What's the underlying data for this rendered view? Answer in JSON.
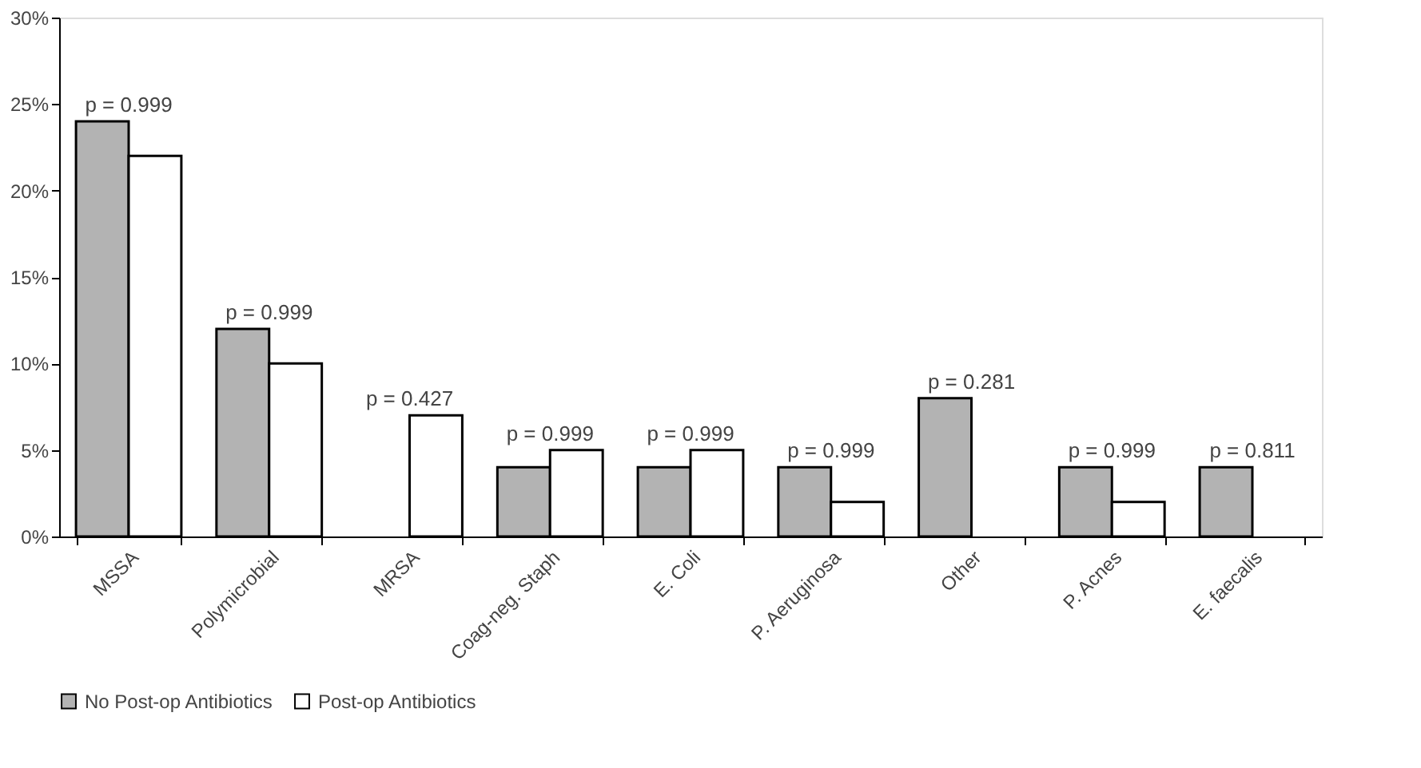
{
  "chart_data": {
    "type": "bar",
    "categories": [
      "MSSA",
      "Polymicrobial",
      "MRSA",
      "Coag-neg. Staph",
      "E. Coli",
      "P. Aeruginosa",
      "Other",
      "P. Acnes",
      "E. faecalis"
    ],
    "series": [
      {
        "name": "No Post-op Antibiotics",
        "color": "#b3b3b3",
        "values": [
          24,
          12,
          0,
          4,
          4,
          4,
          8,
          4,
          4
        ]
      },
      {
        "name": "Post-op Antibiotics",
        "color": "#ffffff",
        "values": [
          22,
          10,
          7,
          5,
          5,
          2,
          0,
          2,
          0
        ]
      }
    ],
    "ylim": [
      0,
      30
    ],
    "yticks": [
      {
        "value": 0,
        "label": "0%"
      },
      {
        "value": 5,
        "label": "5%"
      },
      {
        "value": 10,
        "label": "10%"
      },
      {
        "value": 15,
        "label": "15%"
      },
      {
        "value": 20,
        "label": "20%"
      },
      {
        "value": 25,
        "label": "25%"
      },
      {
        "value": 30,
        "label": "30%"
      }
    ],
    "annotations": [
      {
        "text": "p = 0.999",
        "x": "MSSA",
        "y": 24
      },
      {
        "text": "p = 0.999",
        "x": "Polymicrobial",
        "y": 12
      },
      {
        "text": "p = 0.427",
        "x": "MRSA",
        "y": 7
      },
      {
        "text": "p = 0.999",
        "x": "Coag-neg. Staph",
        "y": 5
      },
      {
        "text": "p = 0.999",
        "x": "E. Coli",
        "y": 5
      },
      {
        "text": "p = 0.999",
        "x": "P. Aeruginosa",
        "y": 4
      },
      {
        "text": "p = 0.281",
        "x": "Other",
        "y": 8
      },
      {
        "text": "p = 0.999",
        "x": "P. Acnes",
        "y": 4
      },
      {
        "text": "p = 0.811",
        "x": "E. faecalis",
        "y": 4
      }
    ],
    "grid": false,
    "legend": "bottom"
  }
}
